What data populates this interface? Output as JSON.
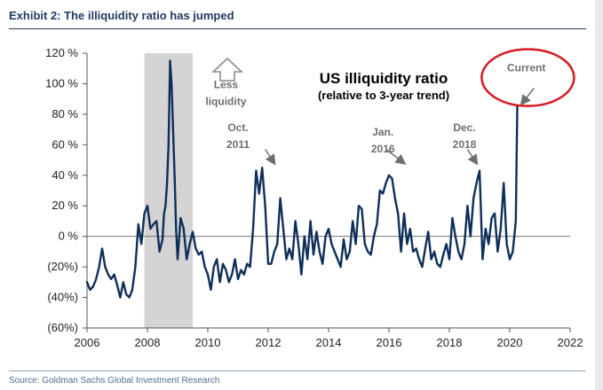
{
  "header": {
    "exhibit_title": "Exhibit 2: The illiquidity ratio has jumped"
  },
  "footer": {
    "source": "Source: Goldman Sachs Global Investment Research"
  },
  "colors": {
    "line": "#0e2f5a",
    "shade": "#d4d4d4",
    "circle": "#d61f26",
    "annotation": "#6e6e6e"
  },
  "chart_data": {
    "type": "line",
    "title": "US illiquidity ratio",
    "subtitle": "(relative to 3-year trend)",
    "xlabel": "",
    "ylabel": "",
    "xlim": [
      2006,
      2022
    ],
    "ylim": [
      -60,
      120
    ],
    "x_ticks": [
      "2006",
      "2008",
      "2010",
      "2012",
      "2014",
      "2016",
      "2018",
      "2020",
      "2022"
    ],
    "y_ticks": [
      "120 %",
      "100 %",
      "80 %",
      "60 %",
      "40 %",
      "20 %",
      "0 %",
      "(20%)",
      "(40%)",
      "(60%)"
    ],
    "y_tick_values": [
      120,
      100,
      80,
      60,
      40,
      20,
      0,
      -20,
      -40,
      -60
    ],
    "recession_band": [
      2007.9,
      2009.5
    ],
    "grid": false,
    "zero_line": true,
    "series": [
      {
        "values": [
          [
            2006.0,
            -30
          ],
          [
            2006.1,
            -35
          ],
          [
            2006.2,
            -33
          ],
          [
            2006.3,
            -28
          ],
          [
            2006.4,
            -20
          ],
          [
            2006.5,
            -8
          ],
          [
            2006.6,
            -20
          ],
          [
            2006.7,
            -25
          ],
          [
            2006.8,
            -28
          ],
          [
            2006.9,
            -25
          ],
          [
            2007.0,
            -32
          ],
          [
            2007.1,
            -40
          ],
          [
            2007.2,
            -30
          ],
          [
            2007.3,
            -38
          ],
          [
            2007.4,
            -40
          ],
          [
            2007.5,
            -35
          ],
          [
            2007.6,
            -20
          ],
          [
            2007.7,
            8
          ],
          [
            2007.8,
            -5
          ],
          [
            2007.9,
            15
          ],
          [
            2008.0,
            20
          ],
          [
            2008.1,
            5
          ],
          [
            2008.2,
            8
          ],
          [
            2008.3,
            10
          ],
          [
            2008.4,
            -10
          ],
          [
            2008.5,
            -2
          ],
          [
            2008.55,
            15
          ],
          [
            2008.6,
            20
          ],
          [
            2008.65,
            35
          ],
          [
            2008.7,
            60
          ],
          [
            2008.75,
            115
          ],
          [
            2008.8,
            100
          ],
          [
            2008.85,
            70
          ],
          [
            2008.9,
            40
          ],
          [
            2008.95,
            5
          ],
          [
            2009.0,
            -15
          ],
          [
            2009.1,
            12
          ],
          [
            2009.2,
            5
          ],
          [
            2009.3,
            -15
          ],
          [
            2009.4,
            -5
          ],
          [
            2009.5,
            3
          ],
          [
            2009.6,
            -8
          ],
          [
            2009.7,
            -12
          ],
          [
            2009.8,
            -10
          ],
          [
            2009.9,
            -20
          ],
          [
            2010.0,
            -25
          ],
          [
            2010.1,
            -35
          ],
          [
            2010.2,
            -20
          ],
          [
            2010.3,
            -15
          ],
          [
            2010.4,
            -30
          ],
          [
            2010.5,
            -18
          ],
          [
            2010.6,
            -22
          ],
          [
            2010.7,
            -30
          ],
          [
            2010.8,
            -25
          ],
          [
            2010.9,
            -15
          ],
          [
            2011.0,
            -28
          ],
          [
            2011.1,
            -22
          ],
          [
            2011.2,
            -25
          ],
          [
            2011.3,
            -18
          ],
          [
            2011.4,
            -20
          ],
          [
            2011.5,
            5
          ],
          [
            2011.6,
            43
          ],
          [
            2011.7,
            28
          ],
          [
            2011.8,
            45
          ],
          [
            2011.9,
            20
          ],
          [
            2012.0,
            -18
          ],
          [
            2012.1,
            -18
          ],
          [
            2012.2,
            -10
          ],
          [
            2012.3,
            -5
          ],
          [
            2012.4,
            25
          ],
          [
            2012.5,
            5
          ],
          [
            2012.6,
            -15
          ],
          [
            2012.7,
            -8
          ],
          [
            2012.8,
            -15
          ],
          [
            2012.9,
            10
          ],
          [
            2013.0,
            -5
          ],
          [
            2013.1,
            -25
          ],
          [
            2013.2,
            0
          ],
          [
            2013.3,
            -15
          ],
          [
            2013.4,
            10
          ],
          [
            2013.5,
            -12
          ],
          [
            2013.6,
            3
          ],
          [
            2013.7,
            -10
          ],
          [
            2013.8,
            -18
          ],
          [
            2013.9,
            0
          ],
          [
            2014.0,
            5
          ],
          [
            2014.1,
            -5
          ],
          [
            2014.2,
            -10
          ],
          [
            2014.3,
            -15
          ],
          [
            2014.4,
            -20
          ],
          [
            2014.5,
            -2
          ],
          [
            2014.6,
            -15
          ],
          [
            2014.7,
            -10
          ],
          [
            2014.8,
            10
          ],
          [
            2014.9,
            -5
          ],
          [
            2015.0,
            20
          ],
          [
            2015.1,
            18
          ],
          [
            2015.2,
            -5
          ],
          [
            2015.3,
            -10
          ],
          [
            2015.4,
            -12
          ],
          [
            2015.5,
            0
          ],
          [
            2015.6,
            8
          ],
          [
            2015.7,
            30
          ],
          [
            2015.8,
            28
          ],
          [
            2015.9,
            35
          ],
          [
            2016.0,
            40
          ],
          [
            2016.1,
            38
          ],
          [
            2016.2,
            25
          ],
          [
            2016.3,
            15
          ],
          [
            2016.4,
            -10
          ],
          [
            2016.5,
            15
          ],
          [
            2016.6,
            -5
          ],
          [
            2016.7,
            5
          ],
          [
            2016.8,
            -10
          ],
          [
            2016.9,
            -8
          ],
          [
            2017.0,
            -15
          ],
          [
            2017.1,
            -20
          ],
          [
            2017.2,
            -8
          ],
          [
            2017.3,
            3
          ],
          [
            2017.4,
            -15
          ],
          [
            2017.5,
            -10
          ],
          [
            2017.6,
            -18
          ],
          [
            2017.7,
            -20
          ],
          [
            2017.8,
            -12
          ],
          [
            2017.9,
            -5
          ],
          [
            2018.0,
            -15
          ],
          [
            2018.1,
            12
          ],
          [
            2018.2,
            0
          ],
          [
            2018.3,
            -10
          ],
          [
            2018.4,
            -15
          ],
          [
            2018.5,
            -5
          ],
          [
            2018.6,
            20
          ],
          [
            2018.7,
            0
          ],
          [
            2018.8,
            25
          ],
          [
            2018.9,
            35
          ],
          [
            2019.0,
            43
          ],
          [
            2019.1,
            -15
          ],
          [
            2019.2,
            5
          ],
          [
            2019.3,
            -5
          ],
          [
            2019.4,
            12
          ],
          [
            2019.5,
            15
          ],
          [
            2019.6,
            -10
          ],
          [
            2019.7,
            5
          ],
          [
            2019.8,
            35
          ],
          [
            2019.9,
            -5
          ],
          [
            2020.0,
            -15
          ],
          [
            2020.1,
            -10
          ],
          [
            2020.2,
            10
          ],
          [
            2020.25,
            86
          ]
        ]
      }
    ],
    "annotations": [
      {
        "text": "Less",
        "x": 2010.6,
        "y": 97
      },
      {
        "text": "liquidity",
        "x": 2010.6,
        "y": 86
      },
      {
        "text": "Oct.",
        "x": 2011.0,
        "y": 69
      },
      {
        "text": "2011",
        "x": 2011.0,
        "y": 58
      },
      {
        "text": "Jan.",
        "x": 2015.8,
        "y": 66
      },
      {
        "text": "2016",
        "x": 2015.8,
        "y": 55
      },
      {
        "text": "Dec.",
        "x": 2018.5,
        "y": 69
      },
      {
        "text": "2018",
        "x": 2018.5,
        "y": 58
      },
      {
        "text": "Current",
        "x": 2020.55,
        "y": 108
      }
    ],
    "arrows": [
      {
        "from": [
          2011.9,
          57
        ],
        "to": [
          2012.2,
          48
        ]
      },
      {
        "from": [
          2015.9,
          57
        ],
        "to": [
          2016.5,
          48
        ]
      },
      {
        "from": [
          2018.6,
          57
        ],
        "to": [
          2018.9,
          48
        ]
      },
      {
        "from": [
          2020.8,
          97
        ],
        "to": [
          2020.4,
          87
        ]
      }
    ]
  }
}
